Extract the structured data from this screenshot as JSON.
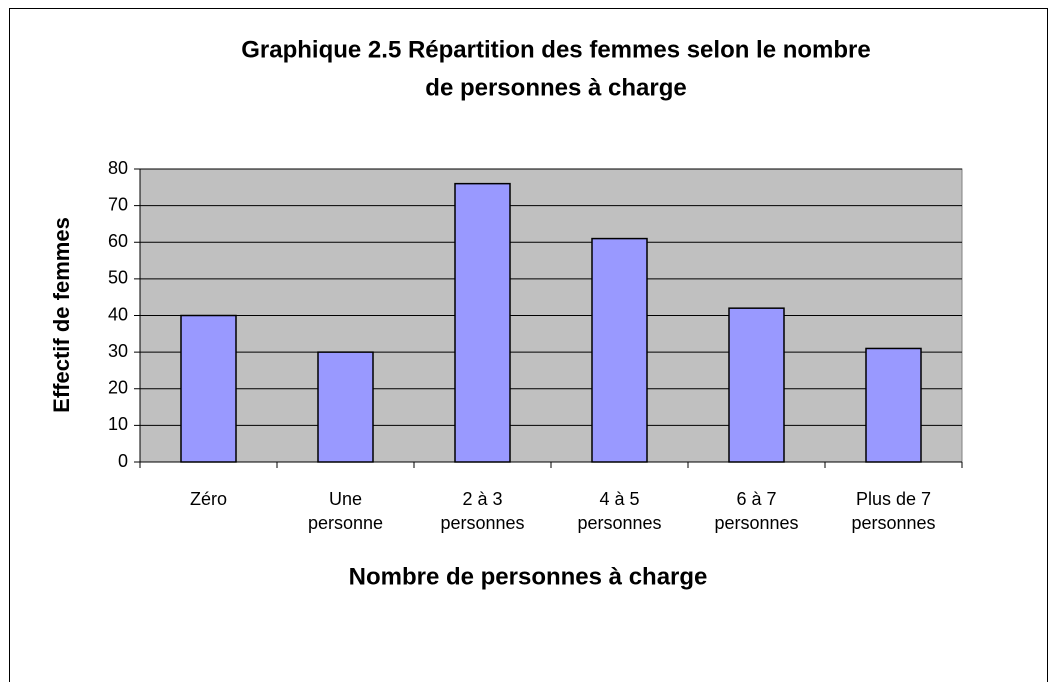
{
  "chart_data": {
    "type": "bar",
    "title": [
      "Graphique 2.5  Répartition des femmes selon le nombre",
      "de personnes à charge"
    ],
    "x_label": "Nombre de personnes à charge",
    "y_label": "Effectif de femmes",
    "categories": [
      "Zéro",
      "Une personne",
      "2 à 3 personnes",
      "4 à 5 personnes",
      "6 à 7 personnes",
      "Plus de 7 personnes"
    ],
    "values": [
      40,
      30,
      76,
      61,
      42,
      31
    ],
    "color": "#9999ff",
    "ylim": [
      0,
      80
    ],
    "yticks": [
      0,
      10,
      20,
      30,
      40,
      50,
      60,
      70,
      80
    ],
    "grid": true
  }
}
